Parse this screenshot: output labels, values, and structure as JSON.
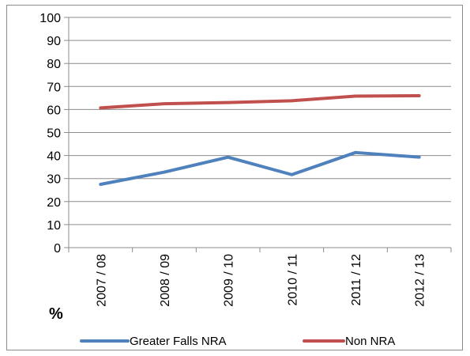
{
  "chart_data": {
    "type": "line",
    "categories": [
      "2007 / 08",
      "2008 / 09",
      "2009 / 10",
      "2010 / 11",
      "2011 / 12",
      "2012 / 13"
    ],
    "series": [
      {
        "name": "Greater Falls NRA",
        "values": [
          27.5,
          32.8,
          39.3,
          31.7,
          41.3,
          39.3
        ],
        "color": "#4f81bd"
      },
      {
        "name": "Non NRA",
        "values": [
          60.7,
          62.5,
          63.0,
          63.8,
          65.8,
          66.0
        ],
        "color": "#c0504d"
      }
    ],
    "ylabel": "%",
    "xlabel": "",
    "ylim": [
      0,
      100
    ],
    "yticks": [
      "0",
      "10",
      "20",
      "30",
      "40",
      "50",
      "60",
      "70",
      "80",
      "90",
      "100"
    ],
    "grid": true,
    "legend_position": "bottom"
  }
}
